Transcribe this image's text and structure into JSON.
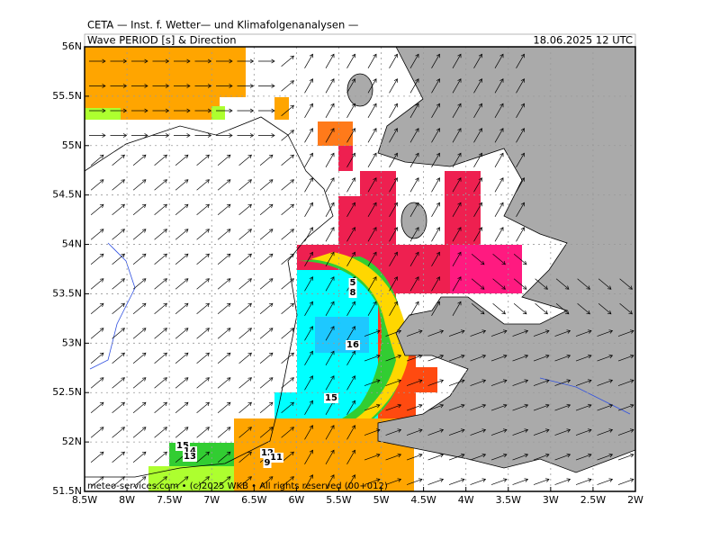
{
  "header": {
    "source": "CETA — Inst. f. Wetter— und Klimafolgenanalysen —",
    "title": "Wave PERIOD [s] & Direction",
    "valid_time": "18.06.2025 12 UTC"
  },
  "map": {
    "lon_ticks": [
      {
        "value": -8.5,
        "label": "8.5W"
      },
      {
        "value": -8,
        "label": "8W"
      },
      {
        "value": -7.5,
        "label": "7.5W"
      },
      {
        "value": -7,
        "label": "7W"
      },
      {
        "value": -6.5,
        "label": "6.5W"
      },
      {
        "value": -6,
        "label": "6W"
      },
      {
        "value": -5.5,
        "label": "5.5W"
      },
      {
        "value": -5,
        "label": "5W"
      },
      {
        "value": -4.5,
        "label": "4.5W"
      },
      {
        "value": -4,
        "label": "4W"
      },
      {
        "value": -3.5,
        "label": "3.5W"
      },
      {
        "value": -3,
        "label": "3W"
      },
      {
        "value": -2.5,
        "label": "2.5W"
      },
      {
        "value": -2,
        "label": "2W"
      }
    ],
    "lat_ticks": [
      {
        "value": 51.5,
        "label": "51.5N"
      },
      {
        "value": 52,
        "label": "52N"
      },
      {
        "value": 52.5,
        "label": "52.5N"
      },
      {
        "value": 53,
        "label": "53N"
      },
      {
        "value": 53.5,
        "label": "53.5N"
      },
      {
        "value": 54,
        "label": "54N"
      },
      {
        "value": 54.5,
        "label": "54.5N"
      },
      {
        "value": 55,
        "label": "55N"
      },
      {
        "value": 55.5,
        "label": "55.5N"
      },
      {
        "value": 56,
        "label": "56N"
      }
    ],
    "contour_labels": [
      5,
      8,
      16,
      15,
      15,
      14,
      13,
      12,
      11,
      9
    ]
  },
  "footer": {
    "copyright": "meteo-services.com • (c)2025 WKB • All rights reserved (00+012)"
  }
}
